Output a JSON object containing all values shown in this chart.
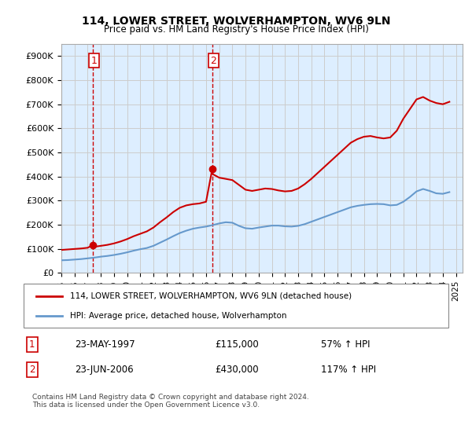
{
  "title1": "114, LOWER STREET, WOLVERHAMPTON, WV6 9LN",
  "title2": "Price paid vs. HM Land Registry's House Price Index (HPI)",
  "ylabel": "",
  "xlim_start": 1995.0,
  "xlim_end": 2025.5,
  "ylim_min": 0,
  "ylim_max": 950000,
  "yticks": [
    0,
    100000,
    200000,
    300000,
    400000,
    500000,
    600000,
    700000,
    800000,
    900000
  ],
  "ytick_labels": [
    "£0",
    "£100K",
    "£200K",
    "£300K",
    "£400K",
    "£500K",
    "£600K",
    "£700K",
    "£800K",
    "£900K"
  ],
  "xtick_years": [
    1995,
    1996,
    1997,
    1998,
    1999,
    2000,
    2001,
    2002,
    2003,
    2004,
    2005,
    2006,
    2007,
    2008,
    2009,
    2010,
    2011,
    2012,
    2013,
    2014,
    2015,
    2016,
    2017,
    2018,
    2019,
    2020,
    2021,
    2022,
    2023,
    2024,
    2025
  ],
  "purchase1_x": 1997.39,
  "purchase1_y": 115000,
  "purchase1_label": "1",
  "purchase2_x": 2006.47,
  "purchase2_y": 430000,
  "purchase2_label": "2",
  "sale_color": "#cc0000",
  "hpi_color": "#6699cc",
  "vline_color": "#cc0000",
  "grid_color": "#cccccc",
  "bg_color": "#ddeeff",
  "plot_bg": "#ddeeff",
  "legend_label1": "114, LOWER STREET, WOLVERHAMPTON, WV6 9LN (detached house)",
  "legend_label2": "HPI: Average price, detached house, Wolverhampton",
  "annotation1_date": "23-MAY-1997",
  "annotation1_price": "£115,000",
  "annotation1_hpi": "57% ↑ HPI",
  "annotation2_date": "23-JUN-2006",
  "annotation2_price": "£430,000",
  "annotation2_hpi": "117% ↑ HPI",
  "footer": "Contains HM Land Registry data © Crown copyright and database right 2024.\nThis data is licensed under the Open Government Licence v3.0.",
  "hpi_data_x": [
    1995.0,
    1995.5,
    1996.0,
    1996.5,
    1997.0,
    1997.5,
    1998.0,
    1998.5,
    1999.0,
    1999.5,
    2000.0,
    2000.5,
    2001.0,
    2001.5,
    2002.0,
    2002.5,
    2003.0,
    2003.5,
    2004.0,
    2004.5,
    2005.0,
    2005.5,
    2006.0,
    2006.5,
    2007.0,
    2007.5,
    2008.0,
    2008.5,
    2009.0,
    2009.5,
    2010.0,
    2010.5,
    2011.0,
    2011.5,
    2012.0,
    2012.5,
    2013.0,
    2013.5,
    2014.0,
    2014.5,
    2015.0,
    2015.5,
    2016.0,
    2016.5,
    2017.0,
    2017.5,
    2018.0,
    2018.5,
    2019.0,
    2019.5,
    2020.0,
    2020.5,
    2021.0,
    2021.5,
    2022.0,
    2022.5,
    2023.0,
    2023.5,
    2024.0,
    2024.5
  ],
  "hpi_data_y": [
    52000,
    53000,
    55000,
    57000,
    60000,
    63000,
    67000,
    70000,
    74000,
    79000,
    85000,
    92000,
    98000,
    103000,
    112000,
    125000,
    138000,
    152000,
    165000,
    175000,
    183000,
    188000,
    192000,
    198000,
    205000,
    210000,
    208000,
    195000,
    185000,
    183000,
    188000,
    192000,
    196000,
    196000,
    193000,
    192000,
    195000,
    202000,
    212000,
    222000,
    232000,
    242000,
    252000,
    262000,
    272000,
    278000,
    282000,
    285000,
    286000,
    285000,
    280000,
    282000,
    295000,
    315000,
    338000,
    348000,
    340000,
    330000,
    328000,
    335000
  ],
  "price_data_x": [
    1995.0,
    1995.5,
    1996.0,
    1996.5,
    1997.0,
    1997.39,
    1997.5,
    1998.0,
    1998.5,
    1999.0,
    1999.5,
    2000.0,
    2000.5,
    2001.0,
    2001.5,
    2002.0,
    2002.5,
    2003.0,
    2003.5,
    2004.0,
    2004.5,
    2005.0,
    2005.5,
    2006.0,
    2006.47,
    2006.5,
    2007.0,
    2007.5,
    2008.0,
    2008.5,
    2009.0,
    2009.5,
    2010.0,
    2010.5,
    2011.0,
    2011.5,
    2012.0,
    2012.5,
    2013.0,
    2013.5,
    2014.0,
    2014.5,
    2015.0,
    2015.5,
    2016.0,
    2016.5,
    2017.0,
    2017.5,
    2018.0,
    2018.5,
    2019.0,
    2019.5,
    2020.0,
    2020.5,
    2021.0,
    2021.5,
    2022.0,
    2022.5,
    2023.0,
    2023.5,
    2024.0,
    2024.5
  ],
  "price_data_y": [
    95000,
    97000,
    99000,
    101000,
    104000,
    115000,
    108000,
    112000,
    116000,
    122000,
    130000,
    140000,
    152000,
    162000,
    172000,
    188000,
    210000,
    230000,
    252000,
    270000,
    280000,
    285000,
    288000,
    295000,
    430000,
    410000,
    395000,
    390000,
    385000,
    365000,
    345000,
    340000,
    345000,
    350000,
    348000,
    342000,
    338000,
    340000,
    350000,
    368000,
    390000,
    415000,
    440000,
    465000,
    490000,
    515000,
    540000,
    555000,
    565000,
    568000,
    562000,
    558000,
    562000,
    590000,
    640000,
    680000,
    720000,
    730000,
    715000,
    705000,
    700000,
    710000
  ]
}
